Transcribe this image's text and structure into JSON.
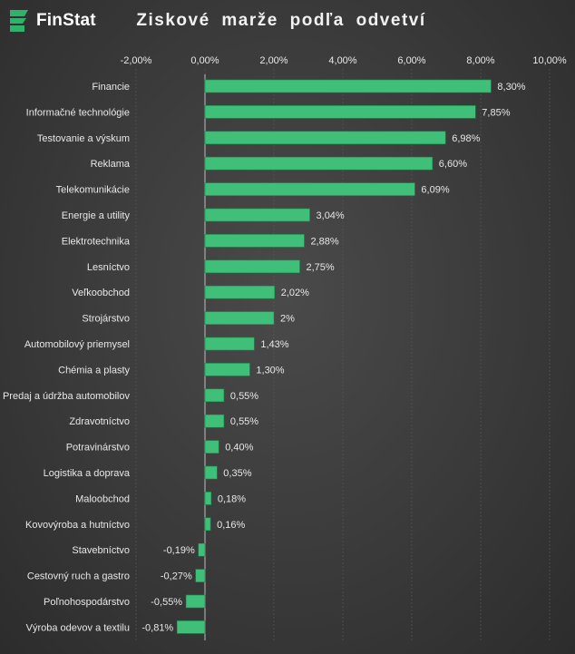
{
  "brand": {
    "name": "FinStat",
    "icon": "finstat-logo-icon"
  },
  "colors": {
    "bar": "#3fbf77",
    "bar_edge": "#1f8a4f",
    "text": "#e8e8e8",
    "grid": "#5a5a5a",
    "axis": "#bdbdbd"
  },
  "chart_data": {
    "type": "bar",
    "orientation": "horizontal",
    "title": "Ziskové marže podľa odvetví",
    "xlim": [
      -0.02,
      0.1
    ],
    "xticks": [
      {
        "value": -0.02,
        "label": "-2,00%"
      },
      {
        "value": 0.0,
        "label": "0,00%"
      },
      {
        "value": 0.02,
        "label": "2,00%"
      },
      {
        "value": 0.04,
        "label": "4,00%"
      },
      {
        "value": 0.06,
        "label": "6,00%"
      },
      {
        "value": 0.08,
        "label": "8,00%"
      },
      {
        "value": 0.1,
        "label": "10,00%"
      }
    ],
    "grid": true,
    "categories": [
      "Financie",
      "Informačné technológie",
      "Testovanie a výskum",
      "Reklama",
      "Telekomunikácie",
      "Energie a utility",
      "Elektrotechnika",
      "Lesníctvo",
      "Veľkoobchod",
      "Strojárstvo",
      "Automobilový priemysel",
      "Chémia a plasty",
      "Predaj a údržba automobilov",
      "Zdravotníctvo",
      "Potravinárstvo",
      "Logistika a doprava",
      "Maloobchod",
      "Kovovýroba a hutníctvo",
      "Stavebníctvo",
      "Cestovný ruch a gastro",
      "Poľnohospodárstvo",
      "Výroba odevov a textilu"
    ],
    "values": [
      0.083,
      0.0785,
      0.0698,
      0.066,
      0.0609,
      0.0304,
      0.0288,
      0.0275,
      0.0202,
      0.02,
      0.0143,
      0.013,
      0.0055,
      0.0055,
      0.004,
      0.0035,
      0.0018,
      0.0016,
      -0.0019,
      -0.0027,
      -0.0055,
      -0.0081
    ],
    "labels": [
      "8,30%",
      "7,85%",
      "6,98%",
      "6,60%",
      "6,09%",
      "3,04%",
      "2,88%",
      "2,75%",
      "2,02%",
      "2%",
      "1,43%",
      "1,30%",
      "0,55%",
      "0,55%",
      "0,40%",
      "0,35%",
      "0,18%",
      "0,16%",
      "-0,19%",
      "-0,27%",
      "-0,55%",
      "-0,81%"
    ]
  }
}
